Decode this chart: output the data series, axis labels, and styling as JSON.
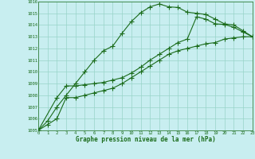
{
  "title": "Graphe pression niveau de la mer (hPa)",
  "bg_color": "#c8eef0",
  "grid_color": "#98d4c8",
  "line_color": "#1a6b1a",
  "xlim": [
    0,
    23
  ],
  "ylim": [
    1005,
    1016
  ],
  "xticks": [
    0,
    1,
    2,
    3,
    4,
    5,
    6,
    7,
    8,
    9,
    10,
    11,
    12,
    13,
    14,
    15,
    16,
    17,
    18,
    19,
    20,
    21,
    22,
    23
  ],
  "yticks": [
    1005,
    1006,
    1007,
    1008,
    1009,
    1010,
    1011,
    1012,
    1013,
    1014,
    1015,
    1016
  ],
  "line1_x": [
    0,
    1,
    2,
    3,
    4,
    5,
    6,
    7,
    8,
    9,
    10,
    11,
    12,
    13,
    14,
    15,
    16,
    17,
    18,
    19,
    20,
    21,
    22,
    23
  ],
  "line1_y": [
    1005.0,
    1005.5,
    1006.0,
    1007.8,
    1007.8,
    1008.0,
    1008.2,
    1008.4,
    1008.6,
    1009.0,
    1009.5,
    1010.0,
    1010.5,
    1011.0,
    1011.5,
    1011.8,
    1012.0,
    1012.2,
    1012.4,
    1012.5,
    1012.8,
    1012.9,
    1013.0,
    1013.0
  ],
  "line2_x": [
    0,
    2,
    3,
    4,
    5,
    6,
    7,
    8,
    9,
    10,
    11,
    12,
    13,
    14,
    15,
    16,
    17,
    18,
    19,
    20,
    21,
    22,
    23
  ],
  "line2_y": [
    1005.0,
    1007.8,
    1008.8,
    1008.8,
    1008.9,
    1009.0,
    1009.1,
    1009.3,
    1009.5,
    1009.9,
    1010.4,
    1011.0,
    1011.5,
    1012.0,
    1012.5,
    1012.8,
    1014.7,
    1014.5,
    1014.1,
    1014.05,
    1013.8,
    1013.4,
    1013.0
  ],
  "line3_x": [
    0,
    1,
    2,
    3,
    4,
    5,
    6,
    7,
    8,
    9,
    10,
    11,
    12,
    13,
    14,
    15,
    16,
    17,
    18,
    19,
    20,
    21,
    22,
    23
  ],
  "line3_y": [
    1005.0,
    1005.8,
    1007.0,
    1008.0,
    1009.0,
    1010.0,
    1011.0,
    1011.8,
    1012.2,
    1013.3,
    1014.3,
    1015.05,
    1015.55,
    1015.8,
    1015.55,
    1015.5,
    1015.1,
    1015.0,
    1014.9,
    1014.5,
    1014.1,
    1014.0,
    1013.5,
    1013.0
  ],
  "figw": 3.2,
  "figh": 2.0,
  "dpi": 100
}
